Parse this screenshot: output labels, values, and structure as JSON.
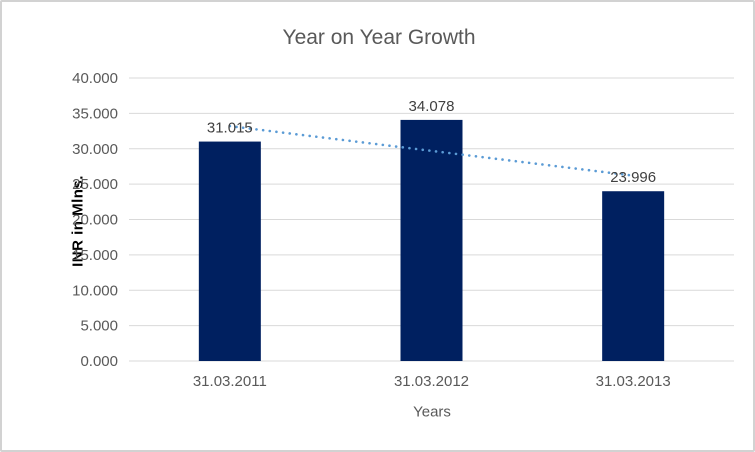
{
  "chart_data": {
    "type": "bar",
    "title": "Year on Year Growth",
    "xlabel": "Years",
    "ylabel": "INR in Mlns.",
    "categories": [
      "31.03.2011",
      "31.03.2012",
      "31.03.2013"
    ],
    "values": [
      31.015,
      34.078,
      23.996
    ],
    "data_labels": [
      "31.015",
      "34.078",
      "23.996"
    ],
    "y_ticks": {
      "values": [
        0,
        5,
        10,
        15,
        20,
        25,
        30,
        35,
        40
      ],
      "labels": [
        "0.000",
        "5.000",
        "10.000",
        "15.000",
        "20.000",
        "25.000",
        "30.000",
        "35.000",
        "40.000"
      ]
    },
    "ylim": [
      0,
      40
    ],
    "grid": true,
    "legend": "none",
    "trendline": {
      "type": "linear",
      "style": "dotted",
      "values": [
        33.2,
        29.7,
        26.2
      ]
    },
    "colors": {
      "bar": "#002060",
      "trendline": "#5B9BD5",
      "gridline": "#D9D9D9",
      "tick_label": "#595959",
      "data_label": "#404040",
      "title": "#595959",
      "y_axis_label": "#000000",
      "frame_border": "#D2D2D2",
      "background": "#FFFFFF"
    }
  }
}
